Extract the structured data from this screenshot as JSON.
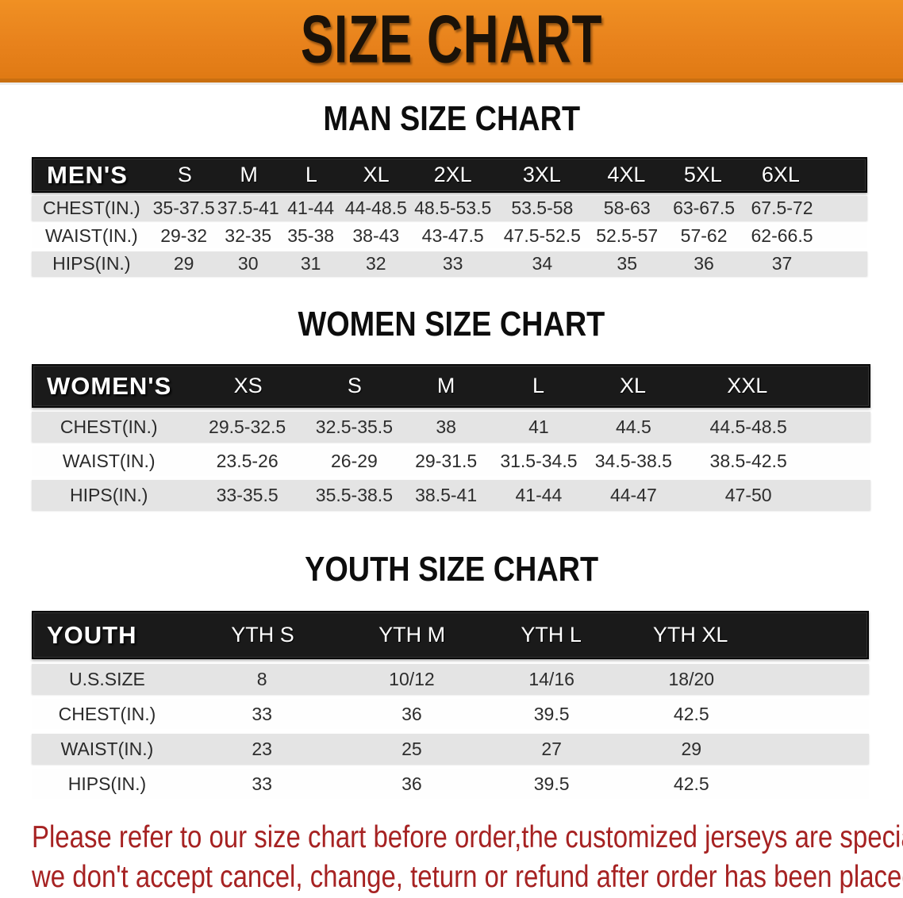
{
  "banner": {
    "title": "SIZE CHART",
    "bg_color": "#E8821C",
    "text_color": "#1B1208"
  },
  "sections": [
    {
      "heading": "MAN SIZE CHART",
      "group_label": "MEN'S",
      "columns": [
        "S",
        "M",
        "L",
        "XL",
        "2XL",
        "3XL",
        "4XL",
        "5XL",
        "6XL"
      ],
      "rows": [
        {
          "label": "CHEST(IN.)",
          "values": [
            "35-37.5",
            "37.5-41",
            "41-44",
            "44-48.5",
            "48.5-53.5",
            "53.5-58",
            "58-63",
            "63-67.5",
            "67.5-72"
          ]
        },
        {
          "label": "WAIST(IN.)",
          "values": [
            "29-32",
            "32-35",
            "35-38",
            "38-43",
            "43-47.5",
            "47.5-52.5",
            "52.5-57",
            "57-62",
            "62-66.5"
          ]
        },
        {
          "label": "HIPS(IN.)",
          "values": [
            "29",
            "30",
            "31",
            "32",
            "33",
            "34",
            "35",
            "36",
            "37"
          ]
        }
      ]
    },
    {
      "heading": "WOMEN SIZE CHART",
      "group_label": "WOMEN'S",
      "columns": [
        "XS",
        "S",
        "M",
        "L",
        "XL",
        "XXL"
      ],
      "rows": [
        {
          "label": "CHEST(IN.)",
          "values": [
            "29.5-32.5",
            "32.5-35.5",
            "38",
            "41",
            "44.5",
            "44.5-48.5"
          ]
        },
        {
          "label": "WAIST(IN.)",
          "values": [
            "23.5-26",
            "26-29",
            "29-31.5",
            "31.5-34.5",
            "34.5-38.5",
            "38.5-42.5"
          ]
        },
        {
          "label": "HIPS(IN.)",
          "values": [
            "33-35.5",
            "35.5-38.5",
            "38.5-41",
            "41-44",
            "44-47",
            "47-50"
          ]
        }
      ]
    },
    {
      "heading": "YOUTH SIZE CHART",
      "group_label": "YOUTH",
      "columns": [
        "YTH S",
        "YTH M",
        "YTH L",
        "YTH XL"
      ],
      "rows": [
        {
          "label": "U.S.SIZE",
          "values": [
            "8",
            "10/12",
            "14/16",
            "18/20"
          ]
        },
        {
          "label": "CHEST(IN.)",
          "values": [
            "33",
            "36",
            "39.5",
            "42.5"
          ]
        },
        {
          "label": "WAIST(IN.)",
          "values": [
            "23",
            "25",
            "27",
            "29"
          ]
        },
        {
          "label": "HIPS(IN.)",
          "values": [
            "33",
            "36",
            "39.5",
            "42.5"
          ]
        }
      ]
    }
  ],
  "footer": {
    "line1": "Please refer to our size chart before order,the customized jerseys are special products,",
    "line2": "we don't accept cancel, change, teturn or refund after order has been placed!",
    "text_color": "#A62222"
  }
}
